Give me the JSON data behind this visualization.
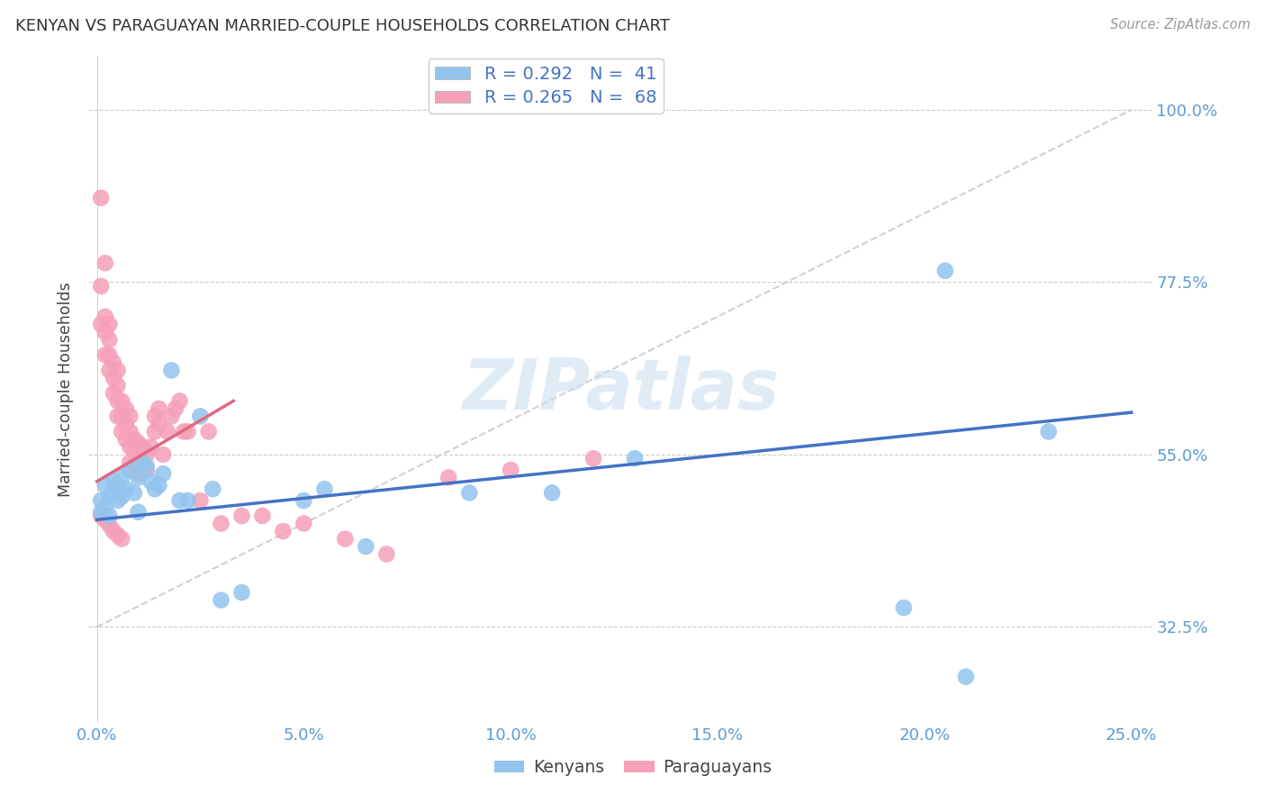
{
  "title": "KENYAN VS PARAGUAYAN MARRIED-COUPLE HOUSEHOLDS CORRELATION CHART",
  "source": "Source: ZipAtlas.com",
  "ylabel": "Married-couple Households",
  "xlim": [
    -0.002,
    0.255
  ],
  "ylim": [
    0.2,
    1.07
  ],
  "kenyan_color": "#92C4EE",
  "paraguayan_color": "#F5A0B8",
  "kenyan_line_color": "#4472C4",
  "paraguayan_line_color": "#E06880",
  "diagonal_color": "#D0D0D0",
  "watermark_text": "ZIPatlas",
  "legend_kenyan": "R = 0.292   N =  41",
  "legend_paraguayan": "R = 0.265   N =  68",
  "ytick_vals": [
    0.325,
    0.55,
    0.775,
    1.0
  ],
  "ytick_labels": [
    "32.5%",
    "55.0%",
    "77.5%",
    "100.0%"
  ],
  "xtick_vals": [
    0.0,
    0.05,
    0.1,
    0.15,
    0.2,
    0.25
  ],
  "xtick_labels": [
    "0.0%",
    "5.0%",
    "10.0%",
    "15.0%",
    "20.0%",
    "25.0%"
  ],
  "kenyan_x": [
    0.001,
    0.001,
    0.002,
    0.002,
    0.003,
    0.003,
    0.004,
    0.004,
    0.005,
    0.005,
    0.005,
    0.006,
    0.006,
    0.007,
    0.008,
    0.009,
    0.01,
    0.01,
    0.011,
    0.012,
    0.013,
    0.014,
    0.015,
    0.016,
    0.018,
    0.02,
    0.022,
    0.025,
    0.028,
    0.03,
    0.035,
    0.05,
    0.055,
    0.065,
    0.09,
    0.11,
    0.13,
    0.195,
    0.21,
    0.23,
    0.205
  ],
  "kenyan_y": [
    0.475,
    0.49,
    0.48,
    0.51,
    0.495,
    0.47,
    0.5,
    0.515,
    0.49,
    0.51,
    0.505,
    0.495,
    0.52,
    0.505,
    0.53,
    0.5,
    0.52,
    0.475,
    0.54,
    0.535,
    0.515,
    0.505,
    0.51,
    0.525,
    0.66,
    0.49,
    0.49,
    0.6,
    0.505,
    0.36,
    0.37,
    0.49,
    0.505,
    0.43,
    0.5,
    0.5,
    0.545,
    0.35,
    0.26,
    0.58,
    0.79
  ],
  "paraguayan_x": [
    0.001,
    0.001,
    0.001,
    0.002,
    0.002,
    0.002,
    0.002,
    0.003,
    0.003,
    0.003,
    0.003,
    0.004,
    0.004,
    0.004,
    0.005,
    0.005,
    0.005,
    0.005,
    0.006,
    0.006,
    0.006,
    0.007,
    0.007,
    0.007,
    0.008,
    0.008,
    0.008,
    0.008,
    0.009,
    0.009,
    0.009,
    0.01,
    0.01,
    0.01,
    0.011,
    0.011,
    0.012,
    0.012,
    0.013,
    0.014,
    0.014,
    0.015,
    0.015,
    0.016,
    0.017,
    0.018,
    0.019,
    0.02,
    0.021,
    0.022,
    0.025,
    0.027,
    0.03,
    0.035,
    0.04,
    0.045,
    0.05,
    0.06,
    0.07,
    0.085,
    0.1,
    0.12,
    0.001,
    0.002,
    0.003,
    0.004,
    0.005,
    0.006
  ],
  "paraguayan_y": [
    0.885,
    0.77,
    0.72,
    0.8,
    0.73,
    0.71,
    0.68,
    0.72,
    0.7,
    0.68,
    0.66,
    0.67,
    0.65,
    0.63,
    0.66,
    0.64,
    0.62,
    0.6,
    0.62,
    0.6,
    0.58,
    0.61,
    0.59,
    0.57,
    0.6,
    0.58,
    0.56,
    0.54,
    0.57,
    0.555,
    0.535,
    0.565,
    0.545,
    0.525,
    0.56,
    0.54,
    0.55,
    0.53,
    0.56,
    0.6,
    0.58,
    0.61,
    0.59,
    0.55,
    0.58,
    0.6,
    0.61,
    0.62,
    0.58,
    0.58,
    0.49,
    0.58,
    0.46,
    0.47,
    0.47,
    0.45,
    0.46,
    0.44,
    0.42,
    0.52,
    0.53,
    0.545,
    0.47,
    0.465,
    0.458,
    0.45,
    0.445,
    0.44
  ]
}
